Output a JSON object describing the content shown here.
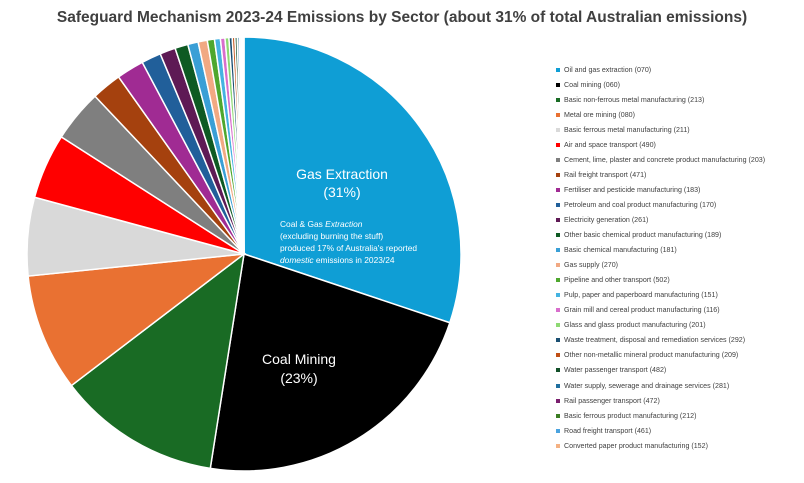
{
  "chart_data": {
    "type": "pie",
    "title": "Safeguard Mechanism 2023-24 Emissions by Sector (about 31% of total Australian emissions)",
    "legend_position": "right",
    "slices": [
      {
        "label": "Oil and gas extraction (070)",
        "value": 31.0,
        "color": "#0f9ed5"
      },
      {
        "label": "Coal mining (060)",
        "value": 23.0,
        "color": "#000000"
      },
      {
        "label": "Basic non-ferrous metal manufacturing (213)",
        "value": 12.5,
        "color": "#196b24"
      },
      {
        "label": "Metal ore mining (080)",
        "value": 9.0,
        "color": "#e97132"
      },
      {
        "label": "Basic ferrous metal manufacturing (211)",
        "value": 6.0,
        "color": "#d9d9d9"
      },
      {
        "label": "Air and space transport (490)",
        "value": 5.0,
        "color": "#ff0000"
      },
      {
        "label": "Cement, lime, plaster and concrete product manufacturing (203)",
        "value": 4.0,
        "color": "#7f7f7f"
      },
      {
        "label": "Rail freight transport (471)",
        "value": 2.3,
        "color": "#a5410e"
      },
      {
        "label": "Fertiliser and pesticide manufacturing (183)",
        "value": 2.1,
        "color": "#a02b93"
      },
      {
        "label": "Petroleum and coal product manufacturing (170)",
        "value": 1.5,
        "color": "#215f9a"
      },
      {
        "label": "Electricity generation (261)",
        "value": 1.2,
        "color": "#5e1a55"
      },
      {
        "label": "Other basic chemical product manufacturing (189)",
        "value": 1.0,
        "color": "#0e5a23"
      },
      {
        "label": "Basic chemical manufacturing (181)",
        "value": 0.8,
        "color": "#3a9fd6"
      },
      {
        "label": "Gas supply (270)",
        "value": 0.7,
        "color": "#f1a983"
      },
      {
        "label": "Pipeline and other transport (502)",
        "value": 0.55,
        "color": "#4ea72e"
      },
      {
        "label": "Pulp, paper and paperboard manufacturing (151)",
        "value": 0.45,
        "color": "#44b3e1"
      },
      {
        "label": "Grain mill and cereal product manufacturing (116)",
        "value": 0.35,
        "color": "#d86ecc"
      },
      {
        "label": "Glass and glass product manufacturing (201)",
        "value": 0.3,
        "color": "#8ed973"
      },
      {
        "label": "Waste treatment, disposal and remediation services (292)",
        "value": 0.25,
        "color": "#1b4f72"
      },
      {
        "label": "Other non-metallic mineral product manufacturing (209)",
        "value": 0.2,
        "color": "#c04f15"
      },
      {
        "label": "Water passenger transport (482)",
        "value": 0.18,
        "color": "#124f29"
      },
      {
        "label": "Water supply, sewerage and drainage services (281)",
        "value": 0.15,
        "color": "#1f6f9f"
      },
      {
        "label": "Rail passenger transport (472)",
        "value": 0.12,
        "color": "#7a1f6e"
      },
      {
        "label": "Basic ferrous product manufacturing (212)",
        "value": 0.1,
        "color": "#3b7d23"
      },
      {
        "label": "Road freight transport (461)",
        "value": 0.08,
        "color": "#4aa3df"
      },
      {
        "label": "Converted paper product manufacturing (152)",
        "value": 0.06,
        "color": "#f4b183"
      }
    ],
    "annotations": {
      "gas_label": "Gas Extraction",
      "gas_pct": "(31%)",
      "coal_label": "Coal Mining",
      "coal_pct": "(23%)",
      "note_line1_a": "Coal & Gas ",
      "note_line1_b": "Extraction",
      "note_line2": "(excluding burning the stuff)",
      "note_line3": "produced 17% of Australia's reported",
      "note_line4_a": "domestic",
      "note_line4_b": " emissions in 2023/24"
    }
  }
}
